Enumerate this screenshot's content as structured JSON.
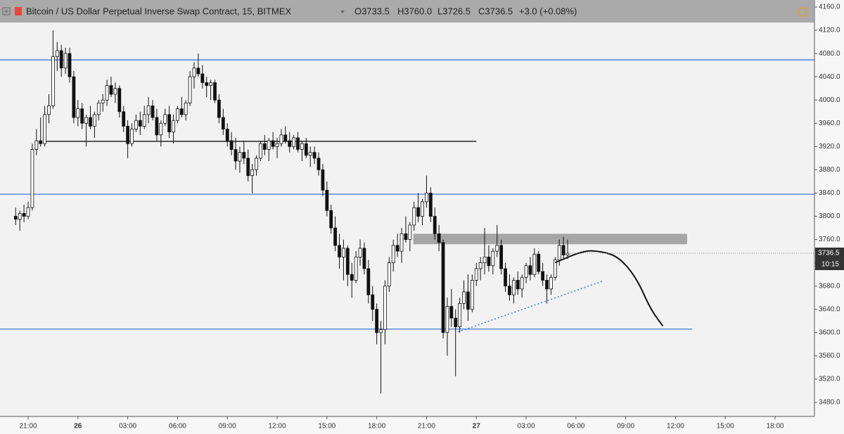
{
  "chart_data": {
    "type": "candlestick",
    "title": "Bitcoin / US Dollar Perpetual Inverse Swap Contract, 15, BITMEX",
    "ohlc_text": [
      "O3733.5",
      "H3760.0",
      "L3726.5",
      "C3736.5",
      "+3.0 (+0.08%)"
    ],
    "x": [
      20.25,
      20.5,
      20.75,
      21,
      21.25,
      21.5,
      21.75,
      22,
      22.25,
      22.5,
      22.75,
      23,
      23.25,
      23.5,
      23.75,
      24,
      24.25,
      24.5,
      24.75,
      25,
      25.25,
      25.5,
      25.75,
      26,
      26.25,
      26.5,
      26.75,
      27,
      27.25,
      27.5,
      27.75,
      28,
      28.25,
      28.5,
      28.75,
      29,
      29.25,
      29.5,
      29.75,
      30,
      30.25,
      30.5,
      30.75,
      31,
      31.25,
      31.5,
      31.75,
      32,
      32.25,
      32.5,
      32.75,
      33,
      33.25,
      33.5,
      33.75,
      34,
      34.25,
      34.5,
      34.75,
      35,
      35.25,
      35.5,
      35.75,
      36,
      36.25,
      36.5,
      36.75,
      37,
      37.25,
      37.5,
      37.75,
      38,
      38.25,
      38.5,
      38.75,
      39,
      39.25,
      39.5,
      39.75,
      40,
      40.25,
      40.5,
      40.75,
      41,
      41.25,
      41.5,
      41.75,
      42,
      42.25,
      42.5,
      42.75,
      43,
      43.25,
      43.5,
      43.75,
      44,
      44.25,
      44.5,
      44.75,
      45,
      45.25,
      45.5,
      45.75,
      46,
      46.25,
      46.5,
      46.75,
      47,
      47.25,
      47.5,
      47.75,
      48,
      48.25,
      48.5,
      48.75,
      49,
      49.25,
      49.5,
      49.75,
      50,
      50.25,
      50.5,
      50.75,
      51,
      51.25,
      51.5,
      51.75,
      52,
      52.25,
      52.5,
      52.75,
      53,
      53.25,
      53.5
    ],
    "ohlc": [
      [
        3800,
        3815,
        3785,
        3795
      ],
      [
        3795,
        3810,
        3775,
        3805
      ],
      [
        3805,
        3820,
        3790,
        3800
      ],
      [
        3800,
        3825,
        3795,
        3815
      ],
      [
        3815,
        3925,
        3810,
        3915
      ],
      [
        3915,
        3950,
        3905,
        3930
      ],
      [
        3930,
        3970,
        3920,
        3925
      ],
      [
        3925,
        3990,
        3920,
        3975
      ],
      [
        3975,
        4010,
        3960,
        3990
      ],
      [
        3990,
        4120,
        3985,
        4075
      ],
      [
        4075,
        4100,
        4050,
        4085
      ],
      [
        4085,
        4095,
        4040,
        4055
      ],
      [
        4055,
        4090,
        4045,
        4080
      ],
      [
        4080,
        4090,
        4030,
        4040
      ],
      [
        4040,
        4050,
        3960,
        3970
      ],
      [
        3970,
        4000,
        3955,
        3985
      ],
      [
        3985,
        3995,
        3950,
        3960
      ],
      [
        3960,
        3975,
        3920,
        3970
      ],
      [
        3970,
        3990,
        3950,
        3955
      ],
      [
        3955,
        3980,
        3935,
        3975
      ],
      [
        3975,
        4000,
        3965,
        3995
      ],
      [
        3995,
        4010,
        3980,
        4000
      ],
      [
        4000,
        4035,
        3990,
        4025
      ],
      [
        4025,
        4040,
        4005,
        4010
      ],
      [
        4010,
        4030,
        3995,
        4020
      ],
      [
        4020,
        4025,
        3970,
        3980
      ],
      [
        3980,
        3990,
        3945,
        3955
      ],
      [
        3955,
        3965,
        3900,
        3925
      ],
      [
        3925,
        3960,
        3920,
        3950
      ],
      [
        3950,
        3975,
        3945,
        3965
      ],
      [
        3965,
        3980,
        3940,
        3955
      ],
      [
        3955,
        3990,
        3950,
        3975
      ],
      [
        3975,
        4005,
        3960,
        3990
      ],
      [
        3990,
        4000,
        3965,
        3970
      ],
      [
        3970,
        3985,
        3930,
        3940
      ],
      [
        3940,
        3965,
        3920,
        3960
      ],
      [
        3960,
        3985,
        3955,
        3975
      ],
      [
        3975,
        3990,
        3935,
        3945
      ],
      [
        3945,
        3975,
        3925,
        3965
      ],
      [
        3965,
        3990,
        3960,
        3985
      ],
      [
        3985,
        4005,
        3970,
        3975
      ],
      [
        3975,
        4000,
        3965,
        3995
      ],
      [
        3995,
        4050,
        3990,
        4040
      ],
      [
        4040,
        4065,
        4020,
        4055
      ],
      [
        4055,
        4080,
        4040,
        4045
      ],
      [
        4045,
        4060,
        4020,
        4030
      ],
      [
        4030,
        4040,
        4005,
        4025
      ],
      [
        4025,
        4035,
        4000,
        4030
      ],
      [
        4030,
        4035,
        3995,
        4000
      ],
      [
        4000,
        4010,
        3960,
        3970
      ],
      [
        3970,
        3985,
        3940,
        3950
      ],
      [
        3950,
        3960,
        3920,
        3930
      ],
      [
        3930,
        3945,
        3905,
        3915
      ],
      [
        3915,
        3935,
        3880,
        3895
      ],
      [
        3895,
        3920,
        3875,
        3910
      ],
      [
        3910,
        3930,
        3890,
        3900
      ],
      [
        3900,
        3915,
        3860,
        3870
      ],
      [
        3870,
        3890,
        3840,
        3880
      ],
      [
        3880,
        3905,
        3870,
        3900
      ],
      [
        3900,
        3930,
        3895,
        3925
      ],
      [
        3925,
        3940,
        3905,
        3915
      ],
      [
        3915,
        3935,
        3895,
        3930
      ],
      [
        3930,
        3945,
        3915,
        3920
      ],
      [
        3920,
        3935,
        3900,
        3925
      ],
      [
        3925,
        3950,
        3920,
        3940
      ],
      [
        3940,
        3955,
        3925,
        3930
      ],
      [
        3930,
        3945,
        3910,
        3920
      ],
      [
        3920,
        3940,
        3915,
        3935
      ],
      [
        3935,
        3945,
        3910,
        3915
      ],
      [
        3915,
        3930,
        3895,
        3925
      ],
      [
        3925,
        3935,
        3900,
        3905
      ],
      [
        3905,
        3920,
        3885,
        3910
      ],
      [
        3910,
        3920,
        3890,
        3900
      ],
      [
        3900,
        3910,
        3870,
        3880
      ],
      [
        3880,
        3890,
        3835,
        3845
      ],
      [
        3845,
        3860,
        3800,
        3810
      ],
      [
        3810,
        3820,
        3770,
        3780
      ],
      [
        3780,
        3800,
        3740,
        3750
      ],
      [
        3750,
        3770,
        3710,
        3730
      ],
      [
        3730,
        3760,
        3690,
        3745
      ],
      [
        3745,
        3750,
        3680,
        3700
      ],
      [
        3700,
        3720,
        3660,
        3690
      ],
      [
        3690,
        3740,
        3685,
        3730
      ],
      [
        3730,
        3760,
        3715,
        3745
      ],
      [
        3745,
        3755,
        3700,
        3710
      ],
      [
        3710,
        3725,
        3650,
        3665
      ],
      [
        3665,
        3680,
        3620,
        3640
      ],
      [
        3640,
        3650,
        3580,
        3600
      ],
      [
        3600,
        3620,
        3495,
        3605
      ],
      [
        3605,
        3690,
        3580,
        3680
      ],
      [
        3680,
        3730,
        3670,
        3720
      ],
      [
        3720,
        3760,
        3705,
        3750
      ],
      [
        3750,
        3770,
        3730,
        3740
      ],
      [
        3740,
        3780,
        3720,
        3770
      ],
      [
        3770,
        3800,
        3755,
        3760
      ],
      [
        3760,
        3790,
        3740,
        3785
      ],
      [
        3785,
        3825,
        3775,
        3815
      ],
      [
        3815,
        3840,
        3790,
        3800
      ],
      [
        3800,
        3830,
        3785,
        3825
      ],
      [
        3825,
        3870,
        3815,
        3840
      ],
      [
        3840,
        3850,
        3790,
        3800
      ],
      [
        3800,
        3815,
        3760,
        3770
      ],
      [
        3770,
        3785,
        3740,
        3755
      ],
      [
        3755,
        3760,
        3590,
        3600
      ],
      [
        3600,
        3660,
        3560,
        3645
      ],
      [
        3645,
        3675,
        3610,
        3625
      ],
      [
        3625,
        3640,
        3525,
        3610
      ],
      [
        3610,
        3660,
        3600,
        3650
      ],
      [
        3650,
        3690,
        3640,
        3670
      ],
      [
        3670,
        3700,
        3620,
        3640
      ],
      [
        3640,
        3700,
        3635,
        3690
      ],
      [
        3690,
        3720,
        3680,
        3710
      ],
      [
        3710,
        3730,
        3690,
        3720
      ],
      [
        3720,
        3780,
        3700,
        3730
      ],
      [
        3730,
        3750,
        3705,
        3715
      ],
      [
        3715,
        3745,
        3700,
        3740
      ],
      [
        3740,
        3785,
        3730,
        3750
      ],
      [
        3750,
        3760,
        3700,
        3710
      ],
      [
        3710,
        3720,
        3670,
        3680
      ],
      [
        3680,
        3700,
        3655,
        3665
      ],
      [
        3665,
        3695,
        3650,
        3690
      ],
      [
        3690,
        3705,
        3665,
        3675
      ],
      [
        3675,
        3700,
        3660,
        3695
      ],
      [
        3695,
        3720,
        3685,
        3715
      ],
      [
        3715,
        3730,
        3690,
        3700
      ],
      [
        3700,
        3745,
        3695,
        3735
      ],
      [
        3735,
        3740,
        3700,
        3705
      ],
      [
        3705,
        3720,
        3680,
        3690
      ],
      [
        3690,
        3700,
        3650,
        3675
      ],
      [
        3675,
        3700,
        3665,
        3695
      ],
      [
        3695,
        3730,
        3690,
        3725
      ],
      [
        3725,
        3760,
        3715,
        3750
      ],
      [
        3750,
        3765,
        3725,
        3733.5
      ],
      [
        3733.5,
        3760,
        3726.5,
        3736.5
      ]
    ],
    "up_color": "#ffffff",
    "down_color": "#111111",
    "xlim": [
      19.305,
      68.37
    ],
    "ylim": [
      3455.8,
      4172.1
    ],
    "yticks": [
      {
        "value": 3480,
        "label": "3480.0"
      },
      {
        "value": 3520,
        "label": "3520.0"
      },
      {
        "value": 3560,
        "label": "3560.0"
      },
      {
        "value": 3600,
        "label": "3600.0"
      },
      {
        "value": 3640,
        "label": "3640.0"
      },
      {
        "value": 3680,
        "label": "3680.0"
      },
      {
        "value": 3720,
        "label": "3720.0"
      },
      {
        "value": 3760,
        "label": "3760.0"
      },
      {
        "value": 3800,
        "label": "3800.0"
      },
      {
        "value": 3840,
        "label": "3840.0"
      },
      {
        "value": 3880,
        "label": "3880.0"
      },
      {
        "value": 3920,
        "label": "3920.0"
      },
      {
        "value": 3960,
        "label": "3960.0"
      },
      {
        "value": 4000,
        "label": "4000.0"
      },
      {
        "value": 4040,
        "label": "4040.0"
      },
      {
        "value": 4080,
        "label": "4080.0"
      },
      {
        "value": 4120,
        "label": "4120.0"
      },
      {
        "value": 4160,
        "label": "4160.0"
      }
    ],
    "xticks": [
      {
        "value": 21,
        "label": "21:00"
      },
      {
        "value": 24,
        "label": "26"
      },
      {
        "value": 27,
        "label": "03:00"
      },
      {
        "value": 30,
        "label": "06:00"
      },
      {
        "value": 33,
        "label": "09:00"
      },
      {
        "value": 36,
        "label": "12:00"
      },
      {
        "value": 39,
        "label": "15:00"
      },
      {
        "value": 42,
        "label": "18:00"
      },
      {
        "value": 45,
        "label": "21:00"
      },
      {
        "value": 48,
        "label": "27"
      },
      {
        "value": 51,
        "label": "03:00"
      },
      {
        "value": 54,
        "label": "06:00"
      },
      {
        "value": 57,
        "label": "09:00"
      },
      {
        "value": 60,
        "label": "12:00"
      },
      {
        "value": 63,
        "label": "15:00"
      },
      {
        "value": 66,
        "label": "18:00"
      }
    ],
    "price_label": {
      "value": 3736.5,
      "label": "3736.5"
    },
    "countdown": "10:15",
    "hlines": [
      {
        "value": 4069,
        "color": "#3c78d8"
      },
      {
        "value": 3838,
        "color": "#3c78d8"
      },
      {
        "value": 3606,
        "color": "#3c78d8"
      }
    ],
    "support": {
      "value": 3929,
      "x": [
        22,
        48
      ],
      "color": "#111111"
    },
    "zone": {
      "x": [
        44.2,
        60.7
      ],
      "y": [
        3752,
        3770
      ],
      "color": "#a6a6a6"
    },
    "trendline": {
      "x": [
        46.9,
        55.66
      ],
      "y": [
        3601,
        3689
      ],
      "color": "#3c78d8"
    },
    "curve": {
      "x": [
        52.78,
        54.47,
        55.53,
        56.59,
        57.65,
        58.5,
        59.22
      ],
      "y": [
        3720.8,
        3741,
        3740,
        3730,
        3694,
        3640,
        3612
      ],
      "color": "#111111"
    }
  }
}
